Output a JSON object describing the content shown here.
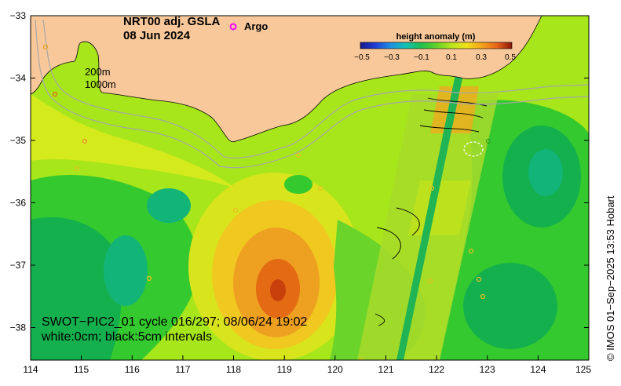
{
  "title": {
    "line1": "NRT00 adj. GSLA",
    "line2": "08 Jun 2024"
  },
  "argo_legend": {
    "marker": "o",
    "label": "Argo",
    "color": "#ff00ff"
  },
  "colorbar": {
    "title": "height anomaly (m)",
    "ticks": [
      "−0.5",
      "−0.3",
      "−0.1",
      "0.1",
      "0.3",
      "0.5"
    ],
    "colors": [
      "#1a1a8c",
      "#1f3fd6",
      "#1e90e0",
      "#14c0b4",
      "#1fbf4f",
      "#5fd12a",
      "#b8e61c",
      "#f0e21a",
      "#f5a41c",
      "#e8641a",
      "#c42c12",
      "#8a1408"
    ]
  },
  "isobaths": {
    "label_200": "200m",
    "label_1000": "1000m"
  },
  "swot_pass": {
    "line1": "SWOT−PIC2_01 cycle 016/297; 08/06/24 19:02",
    "line2": "white:0cm; black:5cm intervals"
  },
  "credit": "© IMOS 01−Sep−2025 13:53 Hobart",
  "axes": {
    "x_ticks": [
      "114",
      "115",
      "116",
      "117",
      "118",
      "119",
      "120",
      "121",
      "122",
      "123",
      "124",
      "125"
    ],
    "y_ticks": [
      "−33",
      "−34",
      "−35",
      "−36",
      "−37",
      "−38"
    ]
  },
  "colors": {
    "land": "#f8c89a",
    "ocean_base": "#a6e61a",
    "green": "#34c92e",
    "deep_green": "#14b04e",
    "teal": "#12b478",
    "yellow": "#e6e41a",
    "orange": "#f0a020",
    "dark_orange": "#e46a14",
    "red": "#c8400c"
  }
}
